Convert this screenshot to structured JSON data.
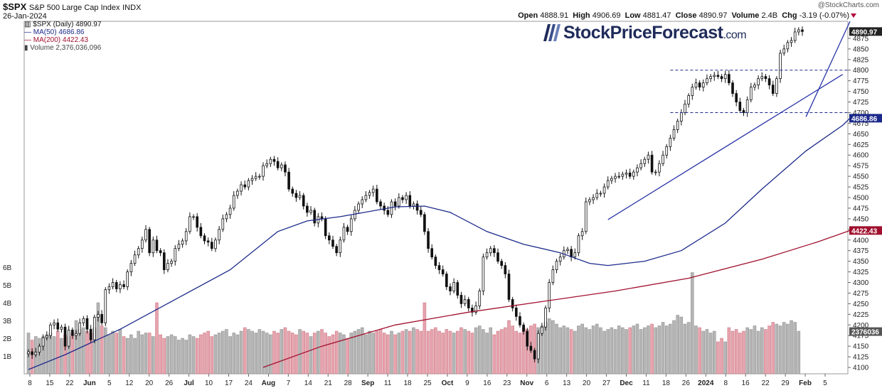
{
  "header": {
    "symbol": "$SPX",
    "name": "S&P 500 Large Cap Index",
    "exchange": "INDX",
    "date": "26-Jan-2024",
    "copyright": "@StockCharts.com",
    "open_label": "Open",
    "open": "4888.91",
    "high_label": "High",
    "high": "4906.69",
    "low_label": "Low",
    "low": "4881.47",
    "close_label": "Close",
    "close": "4890.97",
    "volume_label": "Volume",
    "volume": "2.4B",
    "chg_label": "Chg",
    "chg": "-3.19 (-0.07%)",
    "chg_color": "#b0003a"
  },
  "legend": {
    "price": "$SPX (Daily) 4890.97",
    "ma50": "MA(50) 4686.86",
    "ma200": "MA(200) 4422.43",
    "volume": "Volume 2,376,036,096"
  },
  "watermark": {
    "brand": "StockPriceForecast",
    "suffix": ".com"
  },
  "colors": {
    "ma50": "#1b2a8a",
    "ma200": "#a0102e",
    "trendline": "#2a35a8",
    "vol_up": "#b5b5b5",
    "vol_down": "#e6a4ae",
    "vol_peak": "#e8a0ab",
    "last_price_tag": "#222222",
    "ma200_tag": "#a0102e",
    "ma50_tag": "#1b2a8a",
    "volume_tag": "#555555"
  },
  "chart_data": {
    "type": "candlestick",
    "x_ticks": [
      "8",
      "15",
      "22",
      "Jun",
      "5",
      "12",
      "20",
      "26",
      "Jul",
      "10",
      "17",
      "24",
      "Aug",
      "7",
      "14",
      "21",
      "28",
      "Sep",
      "11",
      "18",
      "25",
      "Oct",
      "9",
      "16",
      "23",
      "Nov",
      "6",
      "13",
      "20",
      "27",
      "Dec",
      "11",
      "18",
      "26",
      "2024",
      "8",
      "16",
      "22",
      "29",
      "Feb",
      "5"
    ],
    "x_tick_bold": [
      "Jun",
      "Jul",
      "Aug",
      "Sep",
      "Oct",
      "Nov",
      "Dec",
      "2024",
      "Feb"
    ],
    "y_ticks": [
      4100,
      4125,
      4150,
      4175,
      4200,
      4225,
      4250,
      4275,
      4300,
      4325,
      4350,
      4375,
      4400,
      4425,
      4450,
      4475,
      4500,
      4525,
      4550,
      4575,
      4600,
      4625,
      4650,
      4675,
      4700,
      4725,
      4750,
      4775,
      4800,
      4825,
      4850,
      4875
    ],
    "ylim": [
      4085,
      4915
    ],
    "volume_ticks": [
      "1B",
      "2B",
      "3B",
      "4B",
      "5B",
      "6B"
    ],
    "price_tags": {
      "last": "4890.97",
      "ma200": "4422.43",
      "ma50": "4686.86",
      "volume": "2376036"
    },
    "closes": [
      4137,
      4130,
      4136,
      4150,
      4170,
      4175,
      4200,
      4205,
      4190,
      4195,
      4150,
      4188,
      4175,
      4180,
      4205,
      4215,
      4190,
      4165,
      4218,
      4225,
      4205,
      4283,
      4290,
      4300,
      4285,
      4295,
      4290,
      4325,
      4345,
      4365,
      4380,
      4400,
      4425,
      4370,
      4400,
      4375,
      4370,
      4330,
      4345,
      4350,
      4380,
      4390,
      4398,
      4420,
      4455,
      4455,
      4430,
      4410,
      4398,
      4395,
      4380,
      4400,
      4425,
      4450,
      4460,
      4475,
      4505,
      4515,
      4530,
      4525,
      4540,
      4545,
      4550,
      4550,
      4575,
      4580,
      4590,
      4585,
      4570,
      4577,
      4560,
      4520,
      4510,
      4500,
      4505,
      4480,
      4465,
      4470,
      4440,
      4455,
      4450,
      4410,
      4400,
      4385,
      4370,
      4400,
      4430,
      4420,
      4450,
      4470,
      4485,
      4495,
      4505,
      4512,
      4520,
      4490,
      4480,
      4470,
      4460,
      4490,
      4480,
      4500,
      4495,
      4505,
      4480,
      4485,
      4470,
      4460,
      4420,
      4380,
      4360,
      4340,
      4330,
      4320,
      4290,
      4280,
      4300,
      4270,
      4250,
      4260,
      4240,
      4230,
      4245,
      4280,
      4360,
      4370,
      4380,
      4370,
      4350,
      4340,
      4320,
      4260,
      4240,
      4220,
      4200,
      4185,
      4150,
      4140,
      4120,
      4180,
      4195,
      4240,
      4300,
      4330,
      4350,
      4360,
      4375,
      4378,
      4360,
      4370,
      4410,
      4420,
      4490,
      4495,
      4500,
      4510,
      4510,
      4525,
      4540,
      4545,
      4550,
      4550,
      4555,
      4558,
      4550,
      4560,
      4570,
      4580,
      4590,
      4600,
      4560,
      4560,
      4580,
      4600,
      4620,
      4640,
      4660,
      4680,
      4700,
      4720,
      4740,
      4760,
      4770,
      4760,
      4770,
      4780,
      4785,
      4788,
      4785,
      4780,
      4790,
      4770,
      4745,
      4725,
      4705,
      4700,
      4730,
      4760,
      4765,
      4780,
      4785,
      4780,
      4765,
      4745,
      4780,
      4840,
      4850,
      4865,
      4870,
      4890,
      4895,
      4890.97
    ],
    "volume_b": [
      2.3,
      1.9,
      2.1,
      2.0,
      2.1,
      2.2,
      2.3,
      2.1,
      2.4,
      2.0,
      2.2,
      2.1,
      2.3,
      3.0,
      2.5,
      2.6,
      2.4,
      2.3,
      2.6,
      4.0,
      2.7,
      2.6,
      2.2,
      2.4,
      2.3,
      2.5,
      2.1,
      2.0,
      2.2,
      2.0,
      2.4,
      2.2,
      2.3,
      2.3,
      2.1,
      4.0,
      2.2,
      2.0,
      2.1,
      2.2,
      2.1,
      1.9,
      2.0,
      1.9,
      2.2,
      2.1,
      2.0,
      2.2,
      2.3,
      2.4,
      2.1,
      2.2,
      2.3,
      2.4,
      2.5,
      2.1,
      2.3,
      2.2,
      2.4,
      2.6,
      2.5,
      2.4,
      2.3,
      2.5,
      2.4,
      2.3,
      2.2,
      2.4,
      2.3,
      2.5,
      2.6,
      2.4,
      2.3,
      2.2,
      2.5,
      2.4,
      2.3,
      2.1,
      2.3,
      2.4,
      2.5,
      2.3,
      2.1,
      2.2,
      2.4,
      2.3,
      2.2,
      2.0,
      2.3,
      2.4,
      2.5,
      2.6,
      2.2,
      2.4,
      2.3,
      2.4,
      2.5,
      2.3,
      2.2,
      2.4,
      2.2,
      2.3,
      2.4,
      2.5,
      2.4,
      2.6,
      2.5,
      2.4,
      4.0,
      2.4,
      2.5,
      2.6,
      2.4,
      2.3,
      2.5,
      2.4,
      2.3,
      2.4,
      2.6,
      2.5,
      2.4,
      2.3,
      2.6,
      2.7,
      2.5,
      2.3,
      2.6,
      2.2,
      2.4,
      2.5,
      2.6,
      3.0,
      2.7,
      2.4,
      2.3,
      2.6,
      2.5,
      2.7,
      2.8,
      2.6,
      2.7,
      2.9,
      3.1,
      3.0,
      2.8,
      2.6,
      2.7,
      2.6,
      2.5,
      2.4,
      2.7,
      2.8,
      2.6,
      2.5,
      2.7,
      2.8,
      2.6,
      2.4,
      2.5,
      2.6,
      2.5,
      2.7,
      2.6,
      2.5,
      2.6,
      2.7,
      2.8,
      2.5,
      2.6,
      2.7,
      2.8,
      2.6,
      2.7,
      2.9,
      2.7,
      2.8,
      3.0,
      3.3,
      3.2,
      2.8,
      2.9,
      5.7,
      2.7,
      2.6,
      2.4,
      2.5,
      2.3,
      2.4,
      1.8,
      2.0,
      1.8,
      2.6,
      2.4,
      2.5,
      2.3,
      2.4,
      2.6,
      2.5,
      2.7,
      2.4,
      2.6,
      2.5,
      2.7,
      2.9,
      2.8,
      2.7,
      2.9,
      2.8,
      3.0,
      2.9,
      2.4
    ],
    "ma50_points": [
      [
        0,
        4095
      ],
      [
        10,
        4130
      ],
      [
        25,
        4190
      ],
      [
        40,
        4260
      ],
      [
        55,
        4330
      ],
      [
        68,
        4420
      ],
      [
        76,
        4445
      ],
      [
        85,
        4455
      ],
      [
        100,
        4478
      ],
      [
        108,
        4480
      ],
      [
        115,
        4465
      ],
      [
        125,
        4420
      ],
      [
        135,
        4390
      ],
      [
        145,
        4370
      ],
      [
        153,
        4345
      ],
      [
        158,
        4340
      ],
      [
        168,
        4350
      ],
      [
        178,
        4375
      ],
      [
        190,
        4440
      ],
      [
        200,
        4520
      ],
      [
        212,
        4610
      ],
      [
        222,
        4670
      ],
      [
        224,
        4686.86
      ]
    ],
    "ma200_points": [
      [
        64,
        4100
      ],
      [
        80,
        4150
      ],
      [
        100,
        4200
      ],
      [
        120,
        4230
      ],
      [
        140,
        4255
      ],
      [
        160,
        4280
      ],
      [
        180,
        4310
      ],
      [
        200,
        4355
      ],
      [
        215,
        4395
      ],
      [
        224,
        4422.43
      ]
    ],
    "resistance_level": 4800,
    "support_level": 4700,
    "resistance_start_index": 175,
    "support_start_index": 175,
    "trendline_1": [
      [
        158,
        4448
      ],
      [
        222,
        4790
      ]
    ],
    "trendline_2": [
      [
        212,
        4690
      ],
      [
        224,
        4915
      ]
    ]
  }
}
